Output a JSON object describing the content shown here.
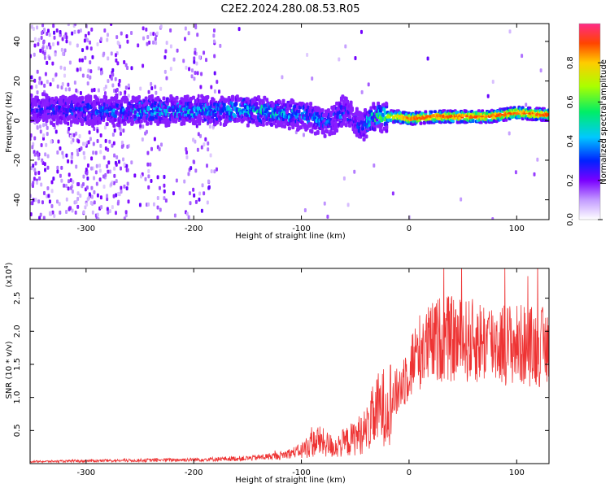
{
  "title": "C2E2.2024.280.08.53.R05",
  "chart_data": [
    {
      "type": "heatmap",
      "xlabel": "Height of straight line (km)",
      "ylabel": "Frequency (Hz)",
      "xlim": [
        -352,
        130
      ],
      "ylim": [
        -50,
        49
      ],
      "xticks": [
        -300,
        -200,
        -100,
        0,
        100
      ],
      "yticks": [
        -40,
        -20,
        0,
        20,
        40
      ],
      "colorbar": {
        "label": "Normalized spectral amplitude",
        "range": [
          0.0,
          1.0
        ],
        "ticks": [
          0.0,
          0.2,
          0.4,
          0.6,
          0.8
        ],
        "tick_labels": [
          "0.0",
          "0.2",
          "0.4",
          "0.6",
          "0.8"
        ]
      },
      "ridge": {
        "x": [
          -350,
          -300,
          -250,
          -200,
          -150,
          -100,
          -75,
          -60,
          -45,
          -30,
          -10,
          0,
          25,
          50,
          75,
          100,
          125
        ],
        "freq": [
          6,
          5,
          5,
          5,
          5,
          3,
          -1,
          5,
          -3,
          2,
          2,
          1,
          2,
          2,
          2,
          4,
          3
        ],
        "peak_amplitude": [
          0.3,
          0.35,
          0.45,
          0.45,
          0.5,
          0.45,
          0.35,
          0.35,
          0.3,
          0.6,
          0.8,
          0.9,
          0.9,
          0.9,
          0.9,
          0.9,
          0.9
        ]
      },
      "grid": false
    },
    {
      "type": "line",
      "xlabel": "Height of straight line (km)",
      "ylabel": "SNR (10 * v/v)",
      "y_multiplier": "(x10",
      "y_multiplier_exp": "4",
      "xlim": [
        -352,
        130
      ],
      "ylim": [
        0,
        2.95
      ],
      "xticks": [
        -300,
        -200,
        -100,
        0,
        100
      ],
      "yticks": [
        0.5,
        1.0,
        1.5,
        2.0,
        2.5
      ],
      "ytick_labels": [
        "0.5",
        "1.0",
        "1.5",
        "2.0",
        "2.5"
      ],
      "color": "#ee3333",
      "series": [
        {
          "x": [
            -350,
            -300,
            -250,
            -200,
            -150,
            -120,
            -100,
            -85,
            -70,
            -55,
            -40,
            -30,
            -20,
            -10,
            0,
            10,
            30,
            50,
            70,
            100,
            130
          ],
          "values": [
            0.03,
            0.04,
            0.05,
            0.06,
            0.08,
            0.12,
            0.2,
            0.35,
            0.25,
            0.35,
            0.5,
            0.8,
            0.9,
            1.1,
            1.45,
            1.7,
            1.9,
            1.85,
            1.85,
            1.8,
            1.75
          ]
        }
      ],
      "grid": false
    }
  ]
}
